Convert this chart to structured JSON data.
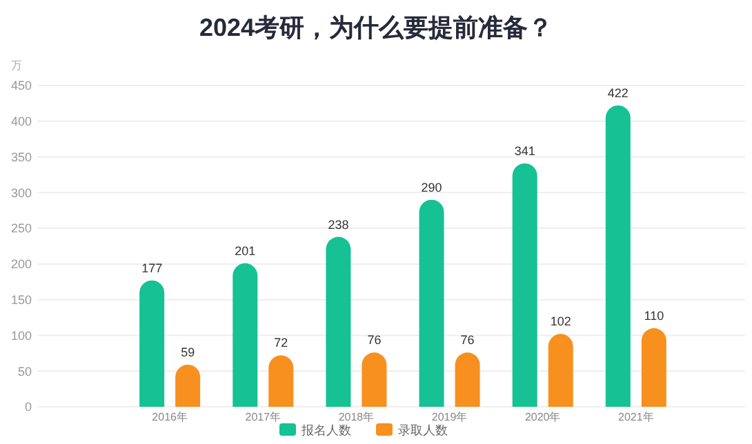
{
  "chart_data": {
    "type": "bar",
    "title": "2024考研，为什么要提前准备？",
    "ylabel": "万",
    "categories": [
      "2016年",
      "2017年",
      "2018年",
      "2019年",
      "2020年",
      "2021年"
    ],
    "series": [
      {
        "name": "报名人数",
        "color": "#16c193",
        "values": [
          177,
          201,
          238,
          290,
          341,
          422
        ]
      },
      {
        "name": "录取人数",
        "color": "#f7901e",
        "values": [
          59,
          72,
          76,
          76,
          102,
          110
        ]
      }
    ],
    "ylim": [
      0,
      450
    ],
    "yticks": [
      0,
      50,
      100,
      150,
      200,
      250,
      300,
      350,
      400,
      450
    ],
    "grid": "y",
    "legend": "bottom",
    "data_labels": true
  }
}
